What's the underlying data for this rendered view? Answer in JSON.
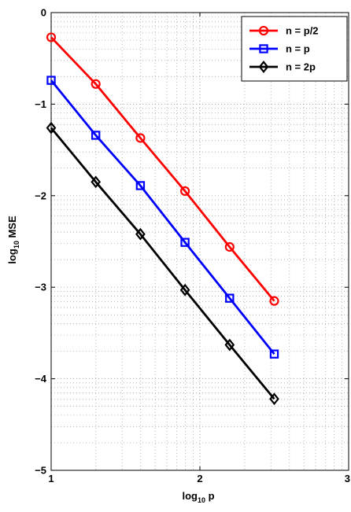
{
  "chart_data": {
    "type": "line",
    "title": "",
    "xlabel": {
      "base": "log",
      "sub": "10",
      "rest": " p"
    },
    "ylabel": {
      "base": "log",
      "sub": "10",
      "rest": " MSE"
    },
    "xlim": [
      1,
      3
    ],
    "ylim": [
      -5,
      0
    ],
    "xticks": [
      1,
      2,
      3
    ],
    "yticks": [
      0,
      -1,
      -2,
      -3,
      -4,
      -5
    ],
    "xtick_labels": [
      "1",
      "2",
      "3"
    ],
    "ytick_labels": [
      "0",
      "−1",
      "−2",
      "−3",
      "−4",
      "−5"
    ],
    "grid": "dotted",
    "legend_position": "top-right",
    "x": [
      1.0,
      1.3,
      1.6,
      1.9,
      2.2,
      2.5
    ],
    "series": [
      {
        "name": "n = p/2",
        "marker": "circle",
        "color": "#ff0000",
        "values": [
          -0.27,
          -0.78,
          -1.37,
          -1.95,
          -2.56,
          -3.15
        ]
      },
      {
        "name": "n = p",
        "marker": "square",
        "color": "#0000ff",
        "values": [
          -0.74,
          -1.34,
          -1.89,
          -2.51,
          -3.12,
          -3.73
        ]
      },
      {
        "name": "n = 2p",
        "marker": "diamond",
        "color": "#000000",
        "values": [
          -1.26,
          -1.85,
          -2.42,
          -3.03,
          -3.63,
          -4.22
        ]
      }
    ]
  }
}
